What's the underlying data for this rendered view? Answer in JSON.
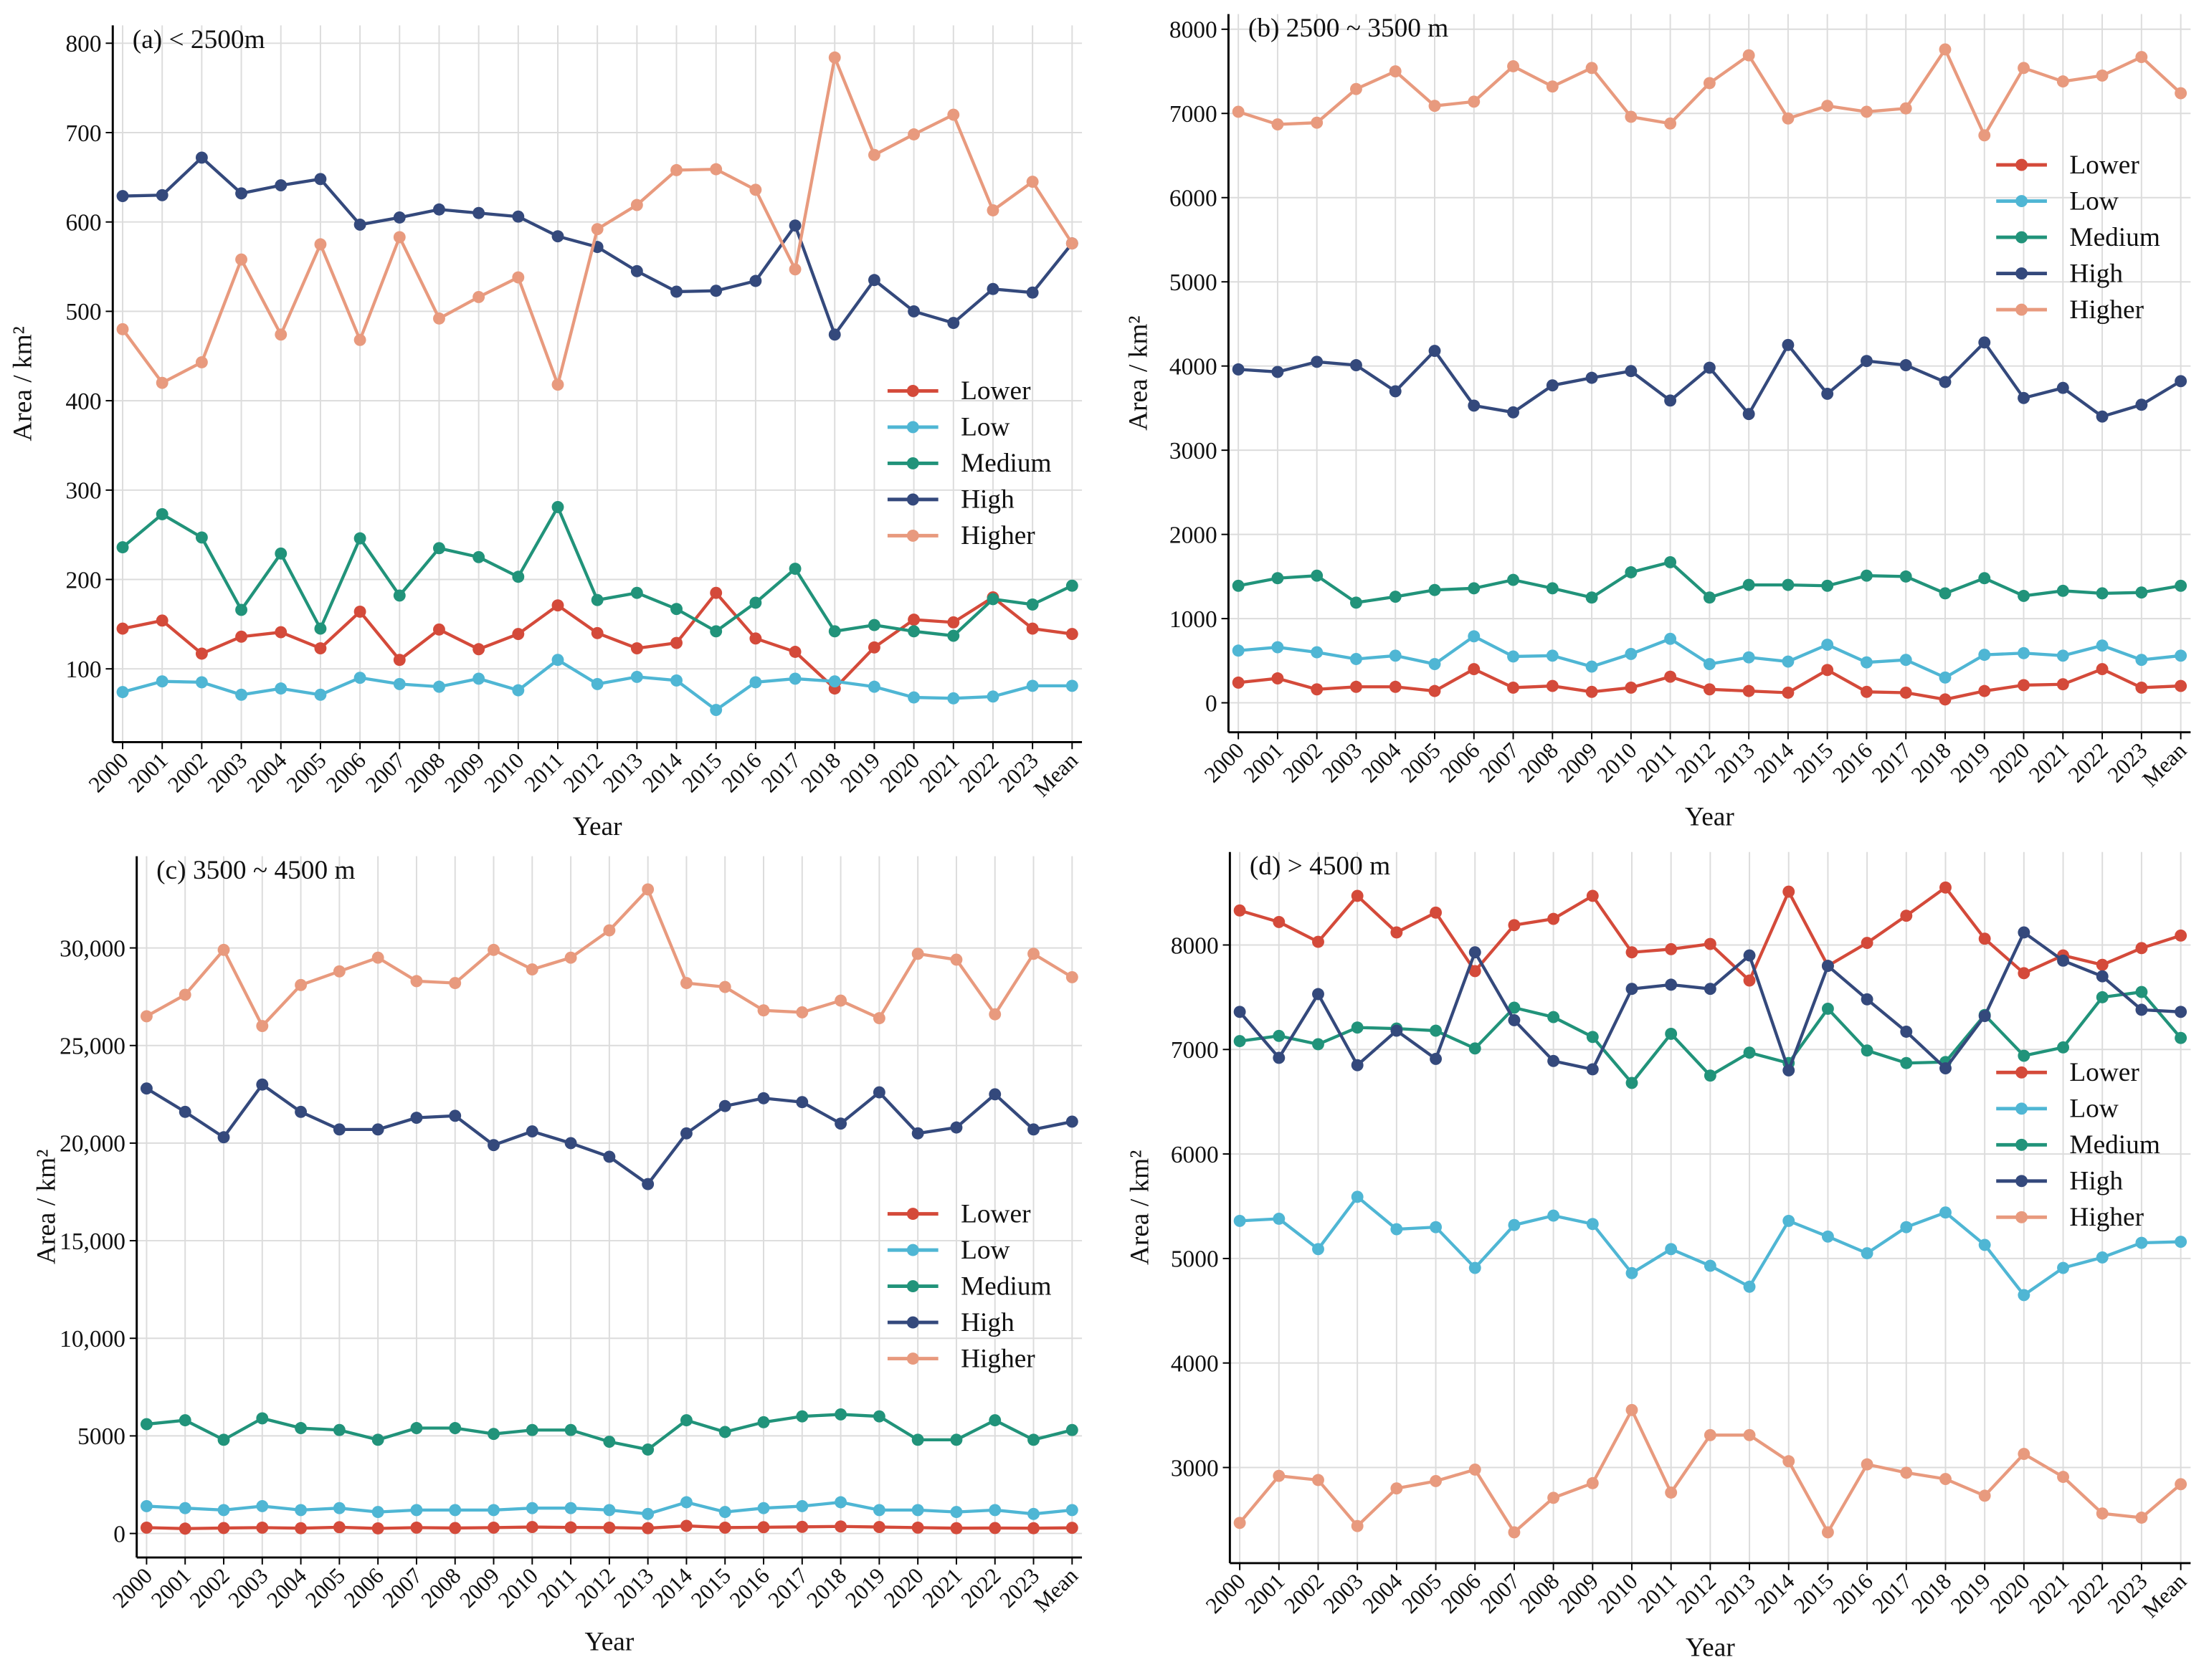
{
  "chart_data": [
    {
      "type": "line",
      "title": "(a) < 2500m",
      "x_label": "Year",
      "y_label": "Area / km²",
      "categories": [
        "2000",
        "2001",
        "2002",
        "2003",
        "2004",
        "2005",
        "2006",
        "2007",
        "2008",
        "2009",
        "2010",
        "2011",
        "2012",
        "2013",
        "2014",
        "2015",
        "2016",
        "2017",
        "2018",
        "2019",
        "2020",
        "2021",
        "2022",
        "2023",
        "Mean"
      ],
      "series": [
        {
          "name": "Lower",
          "color": "#d44a3a",
          "values": [
            145,
            154,
            117,
            136,
            141,
            123,
            164,
            110,
            144,
            122,
            139,
            171,
            140,
            123,
            129,
            185,
            134,
            119,
            78,
            124,
            155,
            152,
            180,
            145,
            139
          ]
        },
        {
          "name": "Low",
          "color": "#4fb6d4",
          "values": [
            74,
            86,
            85,
            71,
            78,
            71,
            90,
            83,
            80,
            89,
            76,
            110,
            83,
            91,
            87,
            54,
            85,
            89,
            86,
            80,
            68,
            67,
            69,
            81,
            81
          ]
        },
        {
          "name": "Medium",
          "color": "#21937a",
          "values": [
            236,
            273,
            247,
            166,
            229,
            145,
            246,
            182,
            235,
            225,
            203,
            281,
            177,
            185,
            167,
            142,
            174,
            212,
            142,
            149,
            142,
            137,
            178,
            172,
            193
          ]
        },
        {
          "name": "High",
          "color": "#34497c",
          "values": [
            629,
            630,
            672,
            632,
            641,
            648,
            597,
            605,
            614,
            610,
            606,
            584,
            572,
            545,
            522,
            523,
            534,
            596,
            474,
            535,
            500,
            487,
            525,
            521,
            576
          ]
        },
        {
          "name": "Higher",
          "color": "#e89a7e",
          "values": [
            480,
            420,
            443,
            558,
            474,
            575,
            468,
            583,
            492,
            516,
            538,
            418,
            592,
            619,
            658,
            659,
            636,
            547,
            784,
            675,
            698,
            720,
            613,
            645,
            576
          ]
        }
      ],
      "ylim": [
        18,
        820
      ],
      "yticks": [
        100,
        200,
        300,
        400,
        500,
        600,
        700,
        800
      ],
      "grid": true,
      "legend": "center right"
    },
    {
      "type": "line",
      "title": "(b) 2500 ~ 3500 m",
      "x_label": "Year",
      "y_label": "Area / km²",
      "categories": [
        "2000",
        "2001",
        "2002",
        "2003",
        "2004",
        "2005",
        "2006",
        "2007",
        "2008",
        "2009",
        "2010",
        "2011",
        "2012",
        "2013",
        "2014",
        "2015",
        "2016",
        "2017",
        "2018",
        "2019",
        "2020",
        "2021",
        "2022",
        "2023",
        "Mean"
      ],
      "series": [
        {
          "name": "Lower",
          "color": "#d44a3a",
          "values": [
            240,
            290,
            160,
            190,
            190,
            140,
            400,
            180,
            200,
            130,
            180,
            310,
            160,
            140,
            120,
            390,
            130,
            120,
            40,
            140,
            210,
            220,
            400,
            180,
            200
          ]
        },
        {
          "name": "Low",
          "color": "#4fb6d4",
          "values": [
            620,
            660,
            600,
            520,
            560,
            460,
            790,
            550,
            560,
            430,
            580,
            760,
            460,
            540,
            490,
            690,
            480,
            510,
            300,
            570,
            590,
            560,
            680,
            510,
            560
          ]
        },
        {
          "name": "Medium",
          "color": "#21937a",
          "values": [
            1390,
            1480,
            1510,
            1190,
            1260,
            1340,
            1360,
            1460,
            1360,
            1250,
            1550,
            1670,
            1250,
            1400,
            1400,
            1390,
            1510,
            1500,
            1300,
            1480,
            1270,
            1330,
            1300,
            1310,
            1390
          ]
        },
        {
          "name": "High",
          "color": "#34497c",
          "values": [
            3960,
            3930,
            4050,
            4010,
            3700,
            4180,
            3530,
            3450,
            3770,
            3860,
            3940,
            3590,
            3980,
            3430,
            4250,
            3670,
            4060,
            4010,
            3810,
            4280,
            3620,
            3740,
            3400,
            3540,
            3820
          ]
        },
        {
          "name": "Higher",
          "color": "#e89a7e",
          "values": [
            7020,
            6870,
            6890,
            7290,
            7500,
            7090,
            7140,
            7560,
            7320,
            7540,
            6960,
            6880,
            7360,
            7690,
            6940,
            7090,
            7020,
            7060,
            7760,
            6740,
            7540,
            7380,
            7450,
            7670,
            7240
          ]
        }
      ],
      "ylim": [
        -350,
        8180
      ],
      "yticks": [
        0,
        1000,
        2000,
        3000,
        4000,
        5000,
        6000,
        7000,
        8000
      ],
      "grid": true,
      "legend": "upper right"
    },
    {
      "type": "line",
      "title": "(c) 3500 ~ 4500 m",
      "x_label": "Year",
      "y_label": "Area / km²",
      "categories": [
        "2000",
        "2001",
        "2002",
        "2003",
        "2004",
        "2005",
        "2006",
        "2007",
        "2008",
        "2009",
        "2010",
        "2011",
        "2012",
        "2013",
        "2014",
        "2015",
        "2016",
        "2017",
        "2018",
        "2019",
        "2020",
        "2021",
        "2022",
        "2023",
        "Mean"
      ],
      "series": [
        {
          "name": "Lower",
          "color": "#d44a3a",
          "values": [
            300,
            250,
            280,
            300,
            270,
            320,
            260,
            300,
            280,
            300,
            330,
            310,
            300,
            270,
            390,
            300,
            320,
            340,
            360,
            330,
            300,
            270,
            280,
            270,
            290
          ]
        },
        {
          "name": "Low",
          "color": "#4fb6d4",
          "values": [
            1400,
            1300,
            1200,
            1400,
            1200,
            1300,
            1100,
            1200,
            1200,
            1200,
            1300,
            1300,
            1200,
            1000,
            1600,
            1100,
            1300,
            1400,
            1600,
            1200,
            1200,
            1100,
            1200,
            1000,
            1200
          ]
        },
        {
          "name": "Medium",
          "color": "#21937a",
          "values": [
            5600,
            5800,
            4800,
            5900,
            5400,
            5300,
            4800,
            5400,
            5400,
            5100,
            5300,
            5300,
            4700,
            4300,
            5800,
            5200,
            5700,
            6000,
            6100,
            6000,
            4800,
            4800,
            5800,
            4800,
            5300
          ]
        },
        {
          "name": "High",
          "color": "#34497c",
          "values": [
            22800,
            21600,
            20300,
            23000,
            21600,
            20700,
            20700,
            21300,
            21400,
            19900,
            20600,
            20000,
            19300,
            17900,
            20500,
            21900,
            22300,
            22100,
            21000,
            22600,
            20500,
            20800,
            22500,
            20700,
            21100
          ]
        },
        {
          "name": "Higher",
          "color": "#e89a7e",
          "values": [
            26500,
            27600,
            29900,
            26000,
            28100,
            28800,
            29500,
            28300,
            28200,
            29900,
            28900,
            29500,
            30900,
            33000,
            28200,
            28000,
            26800,
            26700,
            27300,
            26400,
            29700,
            29400,
            26600,
            29700,
            28500
          ]
        }
      ],
      "ylim": [
        -1230,
        34700
      ],
      "yticks": [
        0,
        5000,
        {
          "value": 10000,
          "label": "10,000"
        },
        {
          "value": 15000,
          "label": "15,000"
        },
        {
          "value": 20000,
          "label": "20,000"
        },
        {
          "value": 25000,
          "label": "25,000"
        },
        {
          "value": 30000,
          "label": "30,000"
        }
      ],
      "grid": true,
      "legend": "center right"
    },
    {
      "type": "line",
      "title": "(d) > 4500 m",
      "x_label": "Year",
      "y_label": "Area / km²",
      "categories": [
        "2000",
        "2001",
        "2002",
        "2003",
        "2004",
        "2005",
        "2006",
        "2007",
        "2008",
        "2009",
        "2010",
        "2011",
        "2012",
        "2013",
        "2014",
        "2015",
        "2016",
        "2017",
        "2018",
        "2019",
        "2020",
        "2021",
        "2022",
        "2023",
        "Mean"
      ],
      "series": [
        {
          "name": "Lower",
          "color": "#d44a3a",
          "values": [
            8330,
            8220,
            8030,
            8470,
            8120,
            8310,
            7750,
            8190,
            8250,
            8470,
            7930,
            7960,
            8010,
            7660,
            8510,
            7800,
            8020,
            8280,
            8550,
            8060,
            7730,
            7900,
            7810,
            7970,
            8090
          ]
        },
        {
          "name": "Low",
          "color": "#4fb6d4",
          "values": [
            5360,
            5380,
            5090,
            5590,
            5280,
            5300,
            4910,
            5320,
            5410,
            5330,
            4860,
            5090,
            4930,
            4730,
            5360,
            5210,
            5050,
            5300,
            5440,
            5130,
            4650,
            4910,
            5010,
            5150,
            5160
          ]
        },
        {
          "name": "Medium",
          "color": "#21937a",
          "values": [
            7080,
            7130,
            7050,
            7210,
            7200,
            7180,
            7010,
            7400,
            7310,
            7120,
            6680,
            7150,
            6750,
            6970,
            6870,
            7390,
            6990,
            6870,
            6880,
            7330,
            6940,
            7020,
            7500,
            7550,
            7110
          ]
        },
        {
          "name": "High",
          "color": "#34497c",
          "values": [
            7360,
            6920,
            7530,
            6850,
            7180,
            6910,
            7930,
            7280,
            6890,
            6810,
            7580,
            7620,
            7580,
            7900,
            6800,
            7800,
            7480,
            7170,
            6820,
            7320,
            8120,
            7850,
            7700,
            7380,
            7360
          ]
        },
        {
          "name": "Higher",
          "color": "#e89a7e",
          "values": [
            2470,
            2920,
            2880,
            2440,
            2800,
            2870,
            2980,
            2380,
            2710,
            2850,
            3550,
            2760,
            3310,
            3310,
            3060,
            2380,
            3030,
            2950,
            2890,
            2730,
            3130,
            2910,
            2560,
            2520,
            2840
          ]
        }
      ],
      "ylim": [
        2085,
        8890
      ],
      "yticks": [
        3000,
        4000,
        5000,
        6000,
        7000,
        8000
      ],
      "grid": true,
      "legend": "right"
    }
  ]
}
